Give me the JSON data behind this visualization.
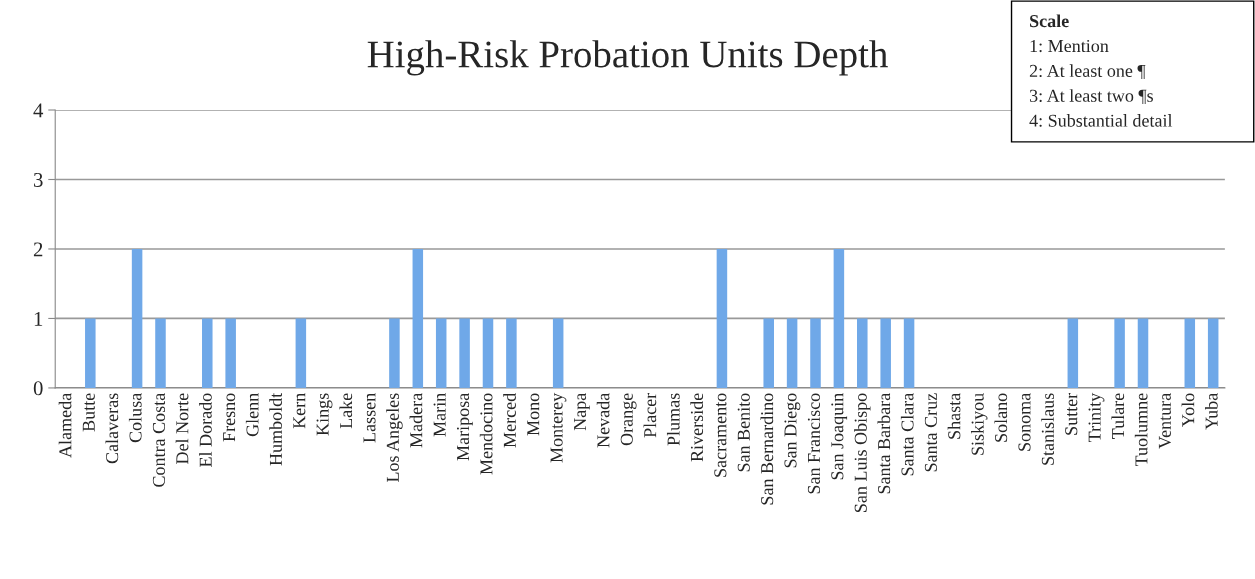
{
  "chart_data": {
    "type": "bar",
    "title": "High-Risk Probation Units Depth",
    "categories": [
      "Alameda",
      "Butte",
      "Calaveras",
      "Colusa",
      "Contra Costa",
      "Del Norte",
      "El Dorado",
      "Fresno",
      "Glenn",
      "Humboldt",
      "Kern",
      "Kings",
      "Lake",
      "Lassen",
      "Los Angeles",
      "Madera",
      "Marin",
      "Mariposa",
      "Mendocino",
      "Merced",
      "Mono",
      "Monterey",
      "Napa",
      "Nevada",
      "Orange",
      "Placer",
      "Plumas",
      "Riverside",
      "Sacramento",
      "San Benito",
      "San Bernardino",
      "San Diego",
      "San Francisco",
      "San Joaquin",
      "San Luis Obispo",
      "Santa Barbara",
      "Santa Clara",
      "Santa Cruz",
      "Shasta",
      "Siskiyou",
      "Solano",
      "Sonoma",
      "Stanislaus",
      "Sutter",
      "Trinity",
      "Tulare",
      "Tuolumne",
      "Ventura",
      "Yolo",
      "Yuba"
    ],
    "values": [
      0,
      1,
      0,
      2,
      1,
      0,
      1,
      1,
      0,
      0,
      1,
      0,
      0,
      0,
      1,
      2,
      1,
      1,
      1,
      1,
      0,
      1,
      0,
      0,
      0,
      0,
      0,
      0,
      2,
      0,
      1,
      1,
      1,
      2,
      1,
      1,
      1,
      0,
      0,
      0,
      0,
      0,
      0,
      1,
      0,
      1,
      1,
      0,
      1,
      1
    ],
    "color": "#6fa8e8",
    "ylim": [
      0,
      4
    ],
    "yticks": [
      0,
      1,
      2,
      3,
      4
    ],
    "grid": "y",
    "annotations": [
      "Scale",
      "1: Mention",
      "2: At least one ¶",
      "3: At least two ¶s",
      "4: Substantial detail"
    ]
  }
}
